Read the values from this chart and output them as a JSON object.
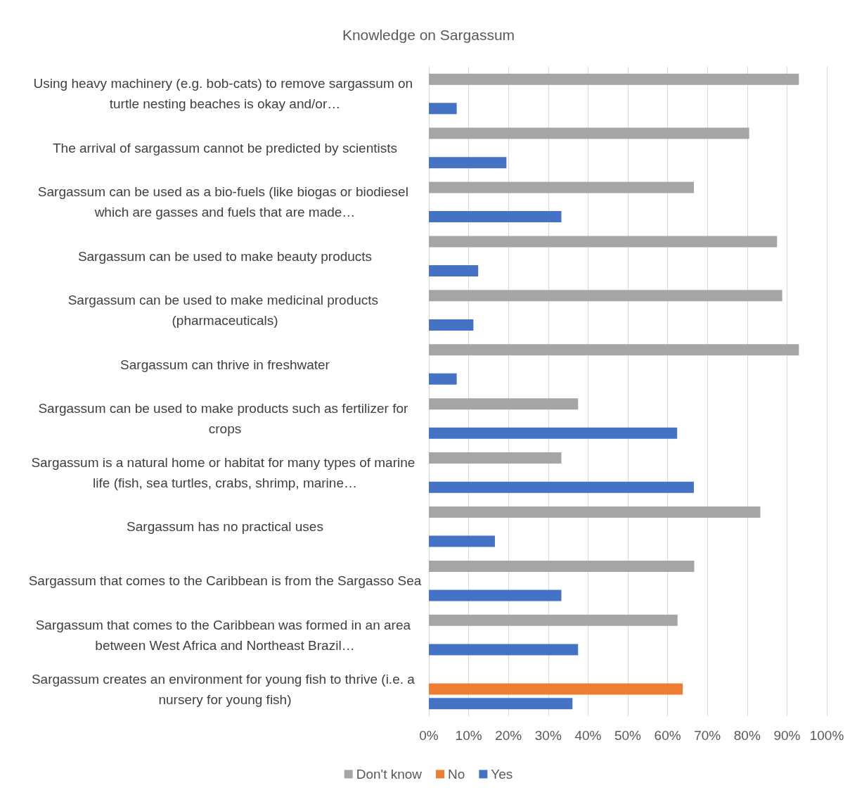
{
  "chart_data": {
    "type": "bar",
    "orientation": "horizontal",
    "title": "Knowledge on Sargassum",
    "categories": [
      "Using heavy machinery (e.g. bob-cats) to remove sargassum on turtle nesting beaches is okay and/or…",
      "The arrival of sargassum cannot be predicted by scientists",
      "Sargassum can be used as a bio-fuels (like biogas or biodiesel which are gasses and fuels that are made…",
      "Sargassum can be used to make beauty products",
      "Sargassum can be used to make medicinal products (pharmaceuticals)",
      "Sargassum can thrive in freshwater",
      "Sargassum can be used to make products such as fertilizer for crops",
      "Sargassum is a natural home or habitat for many types of marine life (fish, sea turtles, crabs, shrimp, marine…",
      "Sargassum has no practical uses",
      "Sargassum that comes to the Caribbean is from the Sargasso Sea",
      "Sargassum that comes to the Caribbean was formed in an area between West Africa and Northeast Brazil…",
      "Sargassum creates an environment for young fish to thrive (i.e. a nursery for young fish)"
    ],
    "series": [
      {
        "name": "Don't know",
        "color": "#a5a5a5",
        "values": [
          93,
          80.5,
          66.6,
          87.5,
          88.8,
          93,
          37.5,
          33.3,
          83.3,
          66.7,
          62.5,
          null
        ]
      },
      {
        "name": "No",
        "color": "#ed7d31",
        "values": [
          null,
          null,
          null,
          null,
          null,
          null,
          null,
          null,
          null,
          null,
          null,
          63.8
        ]
      },
      {
        "name": "Yes",
        "color": "#4472c4",
        "values": [
          7,
          19.5,
          33.3,
          12.4,
          11.2,
          7,
          62.4,
          66.6,
          16.6,
          33.3,
          37.5,
          36.1
        ]
      }
    ],
    "xlim": [
      0,
      100
    ],
    "xticks": [
      {
        "value": 0,
        "label": "0%"
      },
      {
        "value": 10,
        "label": "10%"
      },
      {
        "value": 20,
        "label": "20%"
      },
      {
        "value": 30,
        "label": "30%"
      },
      {
        "value": 40,
        "label": "40%"
      },
      {
        "value": 50,
        "label": "50%"
      },
      {
        "value": 60,
        "label": "60%"
      },
      {
        "value": 70,
        "label": "70%"
      },
      {
        "value": 80,
        "label": "80%"
      },
      {
        "value": 90,
        "label": "90%"
      },
      {
        "value": 100,
        "label": "100%"
      }
    ],
    "grid": "x",
    "legend": "bottom"
  }
}
